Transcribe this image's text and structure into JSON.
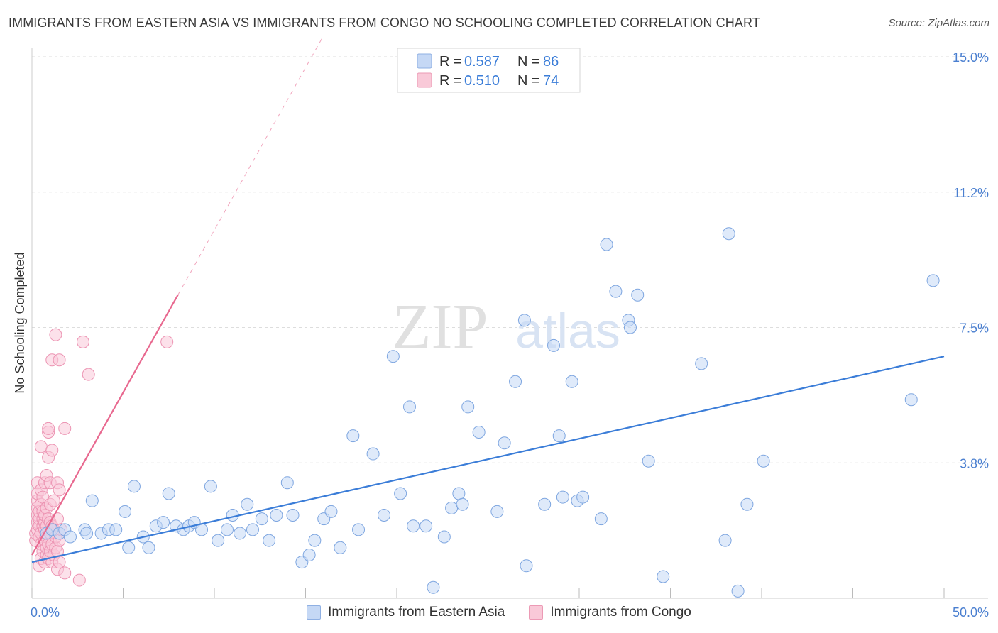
{
  "title": "IMMIGRANTS FROM EASTERN ASIA VS IMMIGRANTS FROM CONGO NO SCHOOLING COMPLETED CORRELATION CHART",
  "source": "Source: ZipAtlas.com",
  "watermark": {
    "zip": "ZIP",
    "atlas": "atlas"
  },
  "colors": {
    "blue_fill": "#c5d8f5",
    "blue_stroke": "#7ea6e0",
    "blue_line": "#3b7dd8",
    "pink_fill": "#f9c9d8",
    "pink_stroke": "#ec93b2",
    "pink_line": "#e8688f",
    "grid": "#dddddd",
    "axis_text": "#4a7fd0"
  },
  "legend": {
    "items": [
      {
        "r_label": "R =",
        "r_value": "0.587",
        "n_label": "N =",
        "n_value": "86"
      },
      {
        "r_label": "R =",
        "r_value": "0.510",
        "n_label": "N =",
        "n_value": "74"
      }
    ]
  },
  "bottom_legend": {
    "blue": "Immigrants from Eastern Asia",
    "pink": "Immigrants from Congo"
  },
  "chart_data": {
    "type": "scatter",
    "title": "IMMIGRANTS FROM EASTERN ASIA VS IMMIGRANTS FROM CONGO NO SCHOOLING COMPLETED CORRELATION CHART",
    "xlabel": "",
    "ylabel": "No Schooling Completed",
    "xlim": [
      0,
      50
    ],
    "ylim": [
      0,
      15
    ],
    "x_tick_labels": [
      {
        "value": 0,
        "label": "0.0%"
      },
      {
        "value": 50,
        "label": "50.0%"
      }
    ],
    "y_tick_labels": [
      {
        "value": 15.0,
        "label": "15.0%"
      },
      {
        "value": 11.25,
        "label": "11.2%"
      },
      {
        "value": 7.5,
        "label": "7.5%"
      },
      {
        "value": 3.75,
        "label": "3.8%"
      }
    ],
    "series": [
      {
        "name": "Immigrants from Eastern Asia",
        "color": "#7ea6e0",
        "R": 0.587,
        "N": 86,
        "trend": {
          "x": [
            0,
            50
          ],
          "y": [
            1.0,
            6.7
          ]
        },
        "points": [
          [
            0.8,
            1.8
          ],
          [
            1.1,
            1.9
          ],
          [
            1.5,
            1.8
          ],
          [
            1.8,
            1.9
          ],
          [
            2.1,
            1.7
          ],
          [
            2.9,
            1.9
          ],
          [
            3,
            1.8
          ],
          [
            3.3,
            2.7
          ],
          [
            3.8,
            1.8
          ],
          [
            4.2,
            1.9
          ],
          [
            4.6,
            1.9
          ],
          [
            5.1,
            2.4
          ],
          [
            5.3,
            1.4
          ],
          [
            5.6,
            3.1
          ],
          [
            6.1,
            1.7
          ],
          [
            6.4,
            1.4
          ],
          [
            6.8,
            2.0
          ],
          [
            7.2,
            2.1
          ],
          [
            7.5,
            2.9
          ],
          [
            7.9,
            2.0
          ],
          [
            8.3,
            1.9
          ],
          [
            8.6,
            2.0
          ],
          [
            8.9,
            2.1
          ],
          [
            9.3,
            1.9
          ],
          [
            9.8,
            3.1
          ],
          [
            10.2,
            1.6
          ],
          [
            10.7,
            1.9
          ],
          [
            11.0,
            2.3
          ],
          [
            11.4,
            1.8
          ],
          [
            11.8,
            2.6
          ],
          [
            12.1,
            1.9
          ],
          [
            12.6,
            2.2
          ],
          [
            13.0,
            1.6
          ],
          [
            13.4,
            2.3
          ],
          [
            14.0,
            3.2
          ],
          [
            14.3,
            2.3
          ],
          [
            14.8,
            1.0
          ],
          [
            15.2,
            1.2
          ],
          [
            15.5,
            1.6
          ],
          [
            16.0,
            2.2
          ],
          [
            16.4,
            2.4
          ],
          [
            16.9,
            1.4
          ],
          [
            17.6,
            4.5
          ],
          [
            17.9,
            1.9
          ],
          [
            18.7,
            4.0
          ],
          [
            19.3,
            2.3
          ],
          [
            19.8,
            6.7
          ],
          [
            20.2,
            2.9
          ],
          [
            20.7,
            5.3
          ],
          [
            20.9,
            2.0
          ],
          [
            21.6,
            2.0
          ],
          [
            22.0,
            0.3
          ],
          [
            22.6,
            1.7
          ],
          [
            23.0,
            2.5
          ],
          [
            23.4,
            2.9
          ],
          [
            23.6,
            2.6
          ],
          [
            23.9,
            5.3
          ],
          [
            24.5,
            4.6
          ],
          [
            25.5,
            2.4
          ],
          [
            25.9,
            4.3
          ],
          [
            26.5,
            6.0
          ],
          [
            27.0,
            7.7
          ],
          [
            27.1,
            0.9
          ],
          [
            28.1,
            2.6
          ],
          [
            28.6,
            7.0
          ],
          [
            28.9,
            4.5
          ],
          [
            29.1,
            2.8
          ],
          [
            29.6,
            6.0
          ],
          [
            29.9,
            2.7
          ],
          [
            30.2,
            2.8
          ],
          [
            31.2,
            2.2
          ],
          [
            31.5,
            9.8
          ],
          [
            32.0,
            8.5
          ],
          [
            32.7,
            7.7
          ],
          [
            32.8,
            7.5
          ],
          [
            33.2,
            8.4
          ],
          [
            33.8,
            3.8
          ],
          [
            34.6,
            0.6
          ],
          [
            36.7,
            6.5
          ],
          [
            38.0,
            1.6
          ],
          [
            38.2,
            10.1
          ],
          [
            38.7,
            0.2
          ],
          [
            39.2,
            2.6
          ],
          [
            40.1,
            3.8
          ],
          [
            48.2,
            5.5
          ],
          [
            49.4,
            8.8
          ]
        ]
      },
      {
        "name": "Immigrants from Congo",
        "color": "#ec93b2",
        "R": 0.51,
        "N": 74,
        "trend": {
          "x": [
            0,
            8
          ],
          "y": [
            1.2,
            8.4
          ]
        },
        "trend_dashed": {
          "x": [
            8,
            16
          ],
          "y": [
            8.4,
            15.6
          ]
        },
        "points": [
          [
            0.2,
            1.6
          ],
          [
            0.2,
            1.8
          ],
          [
            0.3,
            1.9
          ],
          [
            0.3,
            2.1
          ],
          [
            0.3,
            2.3
          ],
          [
            0.3,
            2.5
          ],
          [
            0.3,
            2.7
          ],
          [
            0.3,
            2.9
          ],
          [
            0.3,
            3.2
          ],
          [
            0.4,
            0.9
          ],
          [
            0.4,
            1.7
          ],
          [
            0.4,
            2.0
          ],
          [
            0.4,
            2.2
          ],
          [
            0.4,
            2.4
          ],
          [
            0.5,
            1.1
          ],
          [
            0.5,
            1.5
          ],
          [
            0.5,
            1.8
          ],
          [
            0.5,
            2.6
          ],
          [
            0.5,
            3.0
          ],
          [
            0.5,
            4.2
          ],
          [
            0.6,
            1.3
          ],
          [
            0.6,
            2.0
          ],
          [
            0.6,
            2.2
          ],
          [
            0.6,
            2.4
          ],
          [
            0.6,
            2.8
          ],
          [
            0.7,
            1.0
          ],
          [
            0.7,
            1.6
          ],
          [
            0.7,
            1.9
          ],
          [
            0.7,
            2.1
          ],
          [
            0.7,
            2.3
          ],
          [
            0.7,
            3.2
          ],
          [
            0.8,
            1.2
          ],
          [
            0.8,
            1.4
          ],
          [
            0.8,
            1.7
          ],
          [
            0.8,
            2.0
          ],
          [
            0.8,
            2.5
          ],
          [
            0.8,
            3.4
          ],
          [
            0.9,
            1.1
          ],
          [
            0.9,
            1.5
          ],
          [
            0.9,
            2.2
          ],
          [
            0.9,
            3.9
          ],
          [
            0.9,
            4.6
          ],
          [
            0.9,
            4.7
          ],
          [
            1.0,
            1.3
          ],
          [
            1.0,
            1.8
          ],
          [
            1.0,
            2.1
          ],
          [
            1.0,
            2.6
          ],
          [
            1.0,
            3.2
          ],
          [
            1.1,
            1.0
          ],
          [
            1.1,
            1.5
          ],
          [
            1.1,
            2.0
          ],
          [
            1.1,
            4.1
          ],
          [
            1.1,
            6.6
          ],
          [
            1.2,
            1.2
          ],
          [
            1.2,
            1.9
          ],
          [
            1.2,
            2.7
          ],
          [
            1.3,
            1.4
          ],
          [
            1.3,
            1.7
          ],
          [
            1.3,
            7.3
          ],
          [
            1.4,
            0.8
          ],
          [
            1.4,
            1.3
          ],
          [
            1.4,
            2.2
          ],
          [
            1.4,
            3.2
          ],
          [
            1.5,
            1.0
          ],
          [
            1.5,
            1.6
          ],
          [
            1.5,
            3.0
          ],
          [
            1.5,
            6.6
          ],
          [
            1.6,
            1.9
          ],
          [
            1.8,
            0.7
          ],
          [
            1.8,
            4.7
          ],
          [
            2.6,
            0.5
          ],
          [
            2.8,
            7.1
          ],
          [
            3.1,
            6.2
          ],
          [
            7.4,
            7.1
          ]
        ]
      }
    ]
  }
}
